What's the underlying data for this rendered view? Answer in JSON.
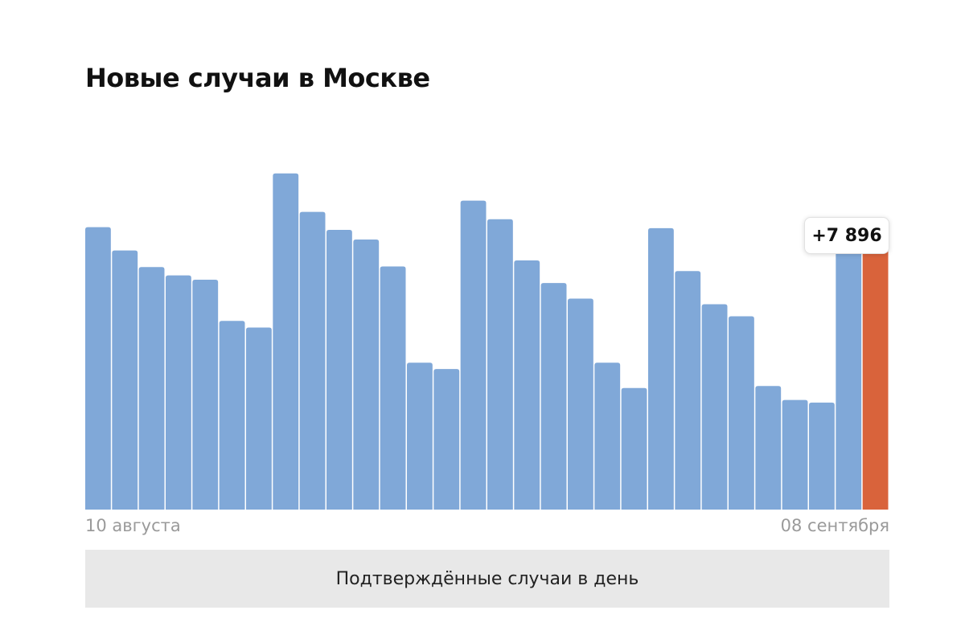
{
  "title": "Новые случаи в Москве",
  "colors": {
    "bar": "#80a8d8",
    "highlight": "#d9633b"
  },
  "chart_data": {
    "type": "bar",
    "x_start_label": "10 августа",
    "x_end_label": "08 сентября",
    "highlight_label": "+7 896",
    "highlight_index": 29,
    "values": [
      8500,
      7800,
      7300,
      7050,
      6920,
      5680,
      5480,
      10120,
      8960,
      8420,
      8130,
      7320,
      4420,
      4230,
      9300,
      8740,
      7500,
      6820,
      6350,
      4420,
      3660,
      8470,
      7180,
      6180,
      5820,
      3720,
      3300,
      3220,
      7930,
      7896
    ],
    "ylim": [
      0,
      10500
    ],
    "grid": false,
    "legend": "none"
  },
  "footer": {
    "button_label": "Подтверждённые случаи в день"
  }
}
